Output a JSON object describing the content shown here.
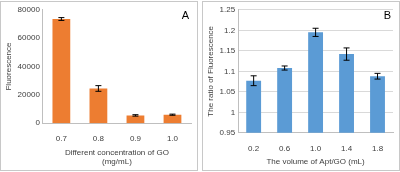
{
  "chart_data": [
    {
      "type": "bar",
      "annotations": [
        "A"
      ],
      "x_label": [
        "Different concentration of GO",
        "(mg/mL)"
      ],
      "y_label": "Fluorescence",
      "categories": [
        "0.7",
        "0.8",
        "0.9",
        "1.0"
      ],
      "values": [
        73500,
        24500,
        5500,
        6000
      ],
      "errors": [
        1000,
        2000,
        500,
        400
      ],
      "color": "#ed7d31",
      "ylim": [
        0,
        80000
      ],
      "yticks": [
        0,
        20000,
        40000,
        60000,
        80000
      ],
      "grid": false
    },
    {
      "type": "bar",
      "annotations": [
        "B"
      ],
      "x_label": "The volume of Apt/GO (mL)",
      "y_label": "The ratio of Fluorescence",
      "categories": [
        "0.2",
        "0.6",
        "1.0",
        "1.4",
        "1.8"
      ],
      "values": [
        1.077,
        1.108,
        1.195,
        1.142,
        1.088
      ],
      "errors": [
        0.012,
        0.005,
        0.01,
        0.015,
        0.007
      ],
      "color": "#5b9bd5",
      "ylim": [
        0.95,
        1.25
      ],
      "yticks": [
        0.95,
        1,
        1.05,
        1.1,
        1.15,
        1.2,
        1.25
      ],
      "grid": true
    }
  ]
}
